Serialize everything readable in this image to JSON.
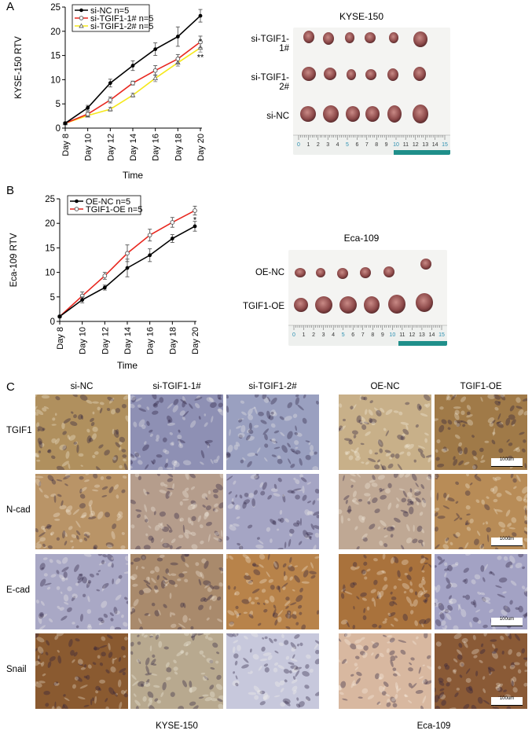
{
  "panel_labels": {
    "a": "A",
    "b": "B",
    "c": "C"
  },
  "chart_data": [
    {
      "type": "line",
      "ylabel": "KYSE-150 RTV",
      "xlabel": "Time",
      "x": [
        "Day 8",
        "Day 10",
        "Day 12",
        "Day 14",
        "Day 16",
        "Day 18",
        "Day 20"
      ],
      "ylim": [
        0,
        25
      ],
      "yticks": [
        0,
        5,
        10,
        15,
        20,
        25
      ],
      "series": [
        {
          "name": "si-NC n=5",
          "color": "#000000",
          "marker": "filled-circle",
          "values": [
            1.0,
            4.2,
            9.3,
            12.9,
            16.3,
            18.9,
            23.2
          ],
          "errors": [
            0.2,
            0.5,
            0.8,
            1.0,
            1.3,
            2.0,
            1.3
          ]
        },
        {
          "name": "si-TGIF1-1# n=5",
          "color": "#e8271f",
          "marker": "open-circle",
          "values": [
            1.0,
            2.9,
            5.8,
            9.3,
            11.9,
            14.3,
            17.8
          ],
          "errors": [
            0.2,
            0.5,
            0.6,
            0.4,
            1.0,
            0.9,
            1.2
          ]
        },
        {
          "name": "si-TGIF1-2# n=5",
          "color": "#f5e81c",
          "marker": "open-triangle",
          "values": [
            1.0,
            2.6,
            3.9,
            6.8,
            10.3,
            13.5,
            16.6
          ],
          "errors": [
            0.2,
            0.3,
            0.4,
            0.4,
            0.7,
            0.7,
            0.9
          ]
        }
      ],
      "annotations": [
        "*",
        "**"
      ]
    },
    {
      "type": "line",
      "ylabel": "Eca-109 RTV",
      "xlabel": "Time",
      "x": [
        "Day 8",
        "Day 10",
        "Day 12",
        "Day 14",
        "Day 16",
        "Day 18",
        "Day 20"
      ],
      "ylim": [
        0,
        25
      ],
      "yticks": [
        0,
        5,
        10,
        15,
        20,
        25
      ],
      "series": [
        {
          "name": "OE-NC n=5",
          "color": "#000000",
          "marker": "filled-circle",
          "values": [
            1.0,
            4.4,
            6.9,
            10.9,
            13.5,
            16.9,
            19.4
          ],
          "errors": [
            0.2,
            0.6,
            0.5,
            1.8,
            1.3,
            0.8,
            1.0
          ]
        },
        {
          "name": "TGIF1-OE n=5",
          "color": "#e8271f",
          "marker": "open-circle",
          "values": [
            1.0,
            5.2,
            9.3,
            13.9,
            17.6,
            20.2,
            22.6
          ],
          "errors": [
            0.2,
            0.8,
            0.7,
            1.7,
            1.2,
            1.0,
            0.9
          ]
        }
      ],
      "annotations": [
        "*"
      ]
    }
  ],
  "photo_a": {
    "title": "KYSE-150",
    "rows": [
      "si-TGIF1-1#",
      "si-TGIF1-2#",
      "si-NC"
    ],
    "ruler_ticks": [
      "0",
      "1",
      "2",
      "3",
      "4",
      "5",
      "6",
      "7",
      "8",
      "9",
      "10",
      "11",
      "12",
      "13",
      "14",
      "15"
    ]
  },
  "photo_b": {
    "title": "Eca-109",
    "rows": [
      "OE-NC",
      "TGIF1-OE"
    ],
    "ruler_ticks": [
      "0",
      "1",
      "2",
      "3",
      "4",
      "5",
      "6",
      "7",
      "8",
      "9",
      "10",
      "11",
      "12",
      "13",
      "14",
      "15"
    ]
  },
  "ihc": {
    "left_columns": [
      "si-NC",
      "si-TGIF1-1#",
      "si-TGIF1-2#"
    ],
    "right_columns": [
      "OE-NC",
      "TGIF1-OE"
    ],
    "rows": [
      "TGIF1",
      "N-cad",
      "E-cad",
      "Snail"
    ],
    "scale_bar": "100um",
    "left_footer": "KYSE-150",
    "right_footer": "Eca-109",
    "tile_colors": [
      [
        "#b0905e",
        "#8e90b4",
        "#9aa0c0",
        "#c8b089",
        "#a07a48"
      ],
      [
        "#b99467",
        "#b59d8c",
        "#a5a5c4",
        "#bfa894",
        "#b88c57"
      ],
      [
        "#a9a8c5",
        "#a98a6c",
        "#b8834a",
        "#a9723c",
        "#a3a2c4"
      ],
      [
        "#8a5a30",
        "#b8a98f",
        "#c7c8dc",
        "#d8b8a0",
        "#8a5a36"
      ]
    ]
  }
}
